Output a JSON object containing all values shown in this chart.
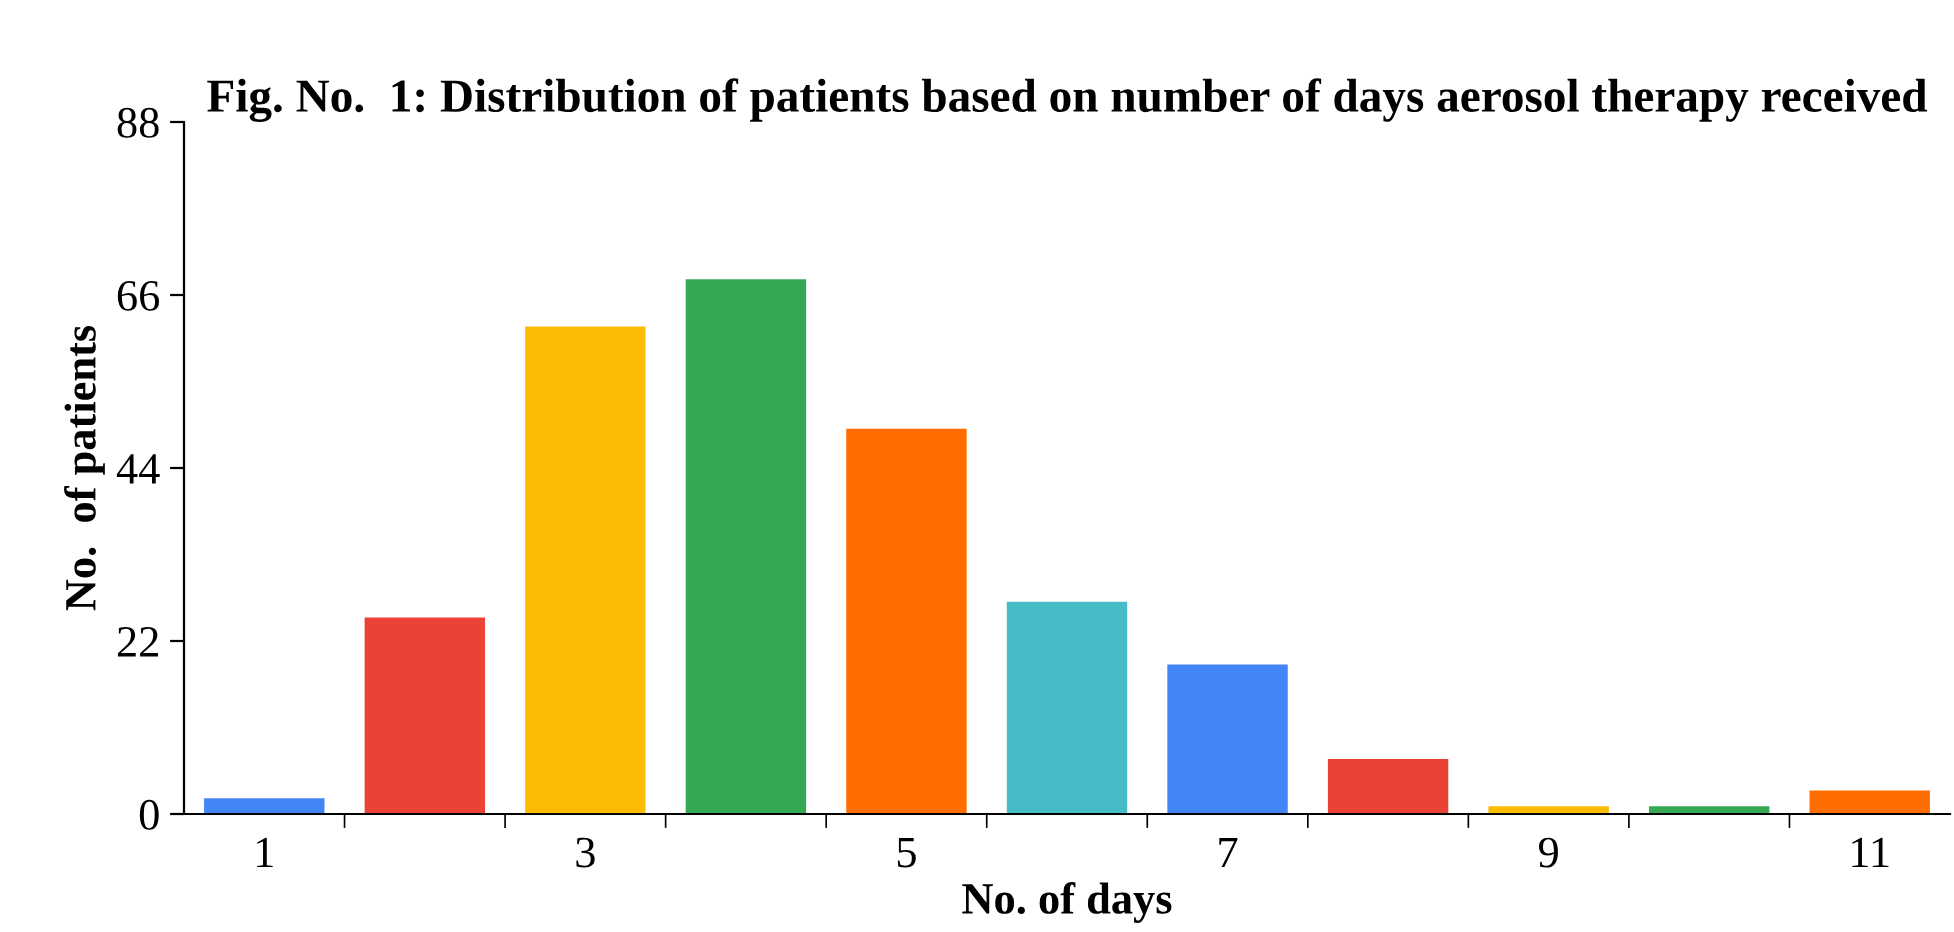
{
  "chart_data": {
    "type": "bar",
    "title": "Fig. No.  1: Distribution of patients based on number of days aerosol therapy received",
    "xlabel": "No. of days",
    "ylabel": "No.  of patients",
    "categories": [
      "1",
      null,
      "3",
      null,
      "5",
      null,
      "7",
      null,
      "9",
      null,
      "11"
    ],
    "values": [
      2,
      25,
      62,
      68,
      49,
      27,
      19,
      7,
      1,
      1,
      3
    ],
    "colors": [
      "#4285f4",
      "#ea4335",
      "#fbbc04",
      "#34a853",
      "#ff6d01",
      "#46bdc6",
      "#4285f4",
      "#ea4335",
      "#fbbc04",
      "#34a853",
      "#ff6d01"
    ],
    "ylim": [
      0,
      88
    ],
    "yticks": [
      0,
      22,
      44,
      66,
      88
    ],
    "grid": false,
    "legend": false
  }
}
